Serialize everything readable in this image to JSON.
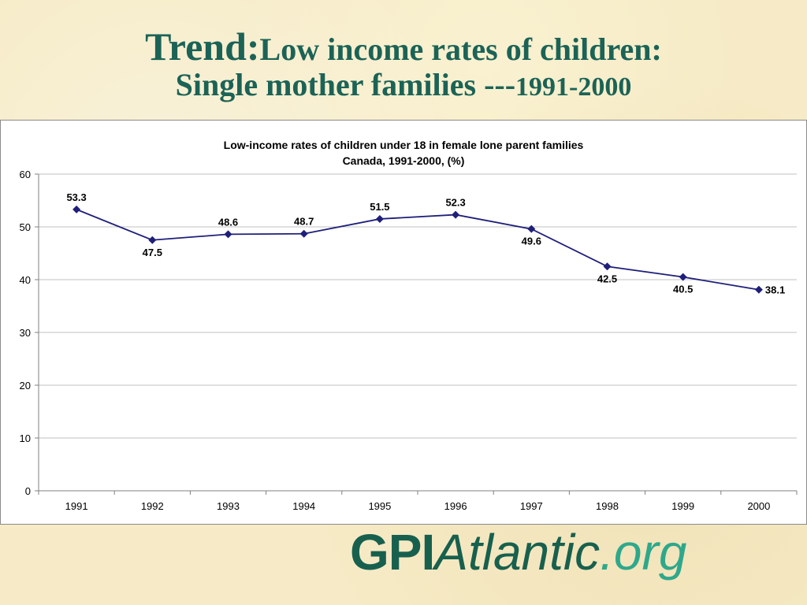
{
  "slide": {
    "title_prefix": "Trend:",
    "title_rest": "Low income rates of children:",
    "title_line2": "Single mother families ---",
    "title_years": "1991-2000"
  },
  "logo": {
    "part1": "GPI",
    "part2": "Atlantic",
    "part3": ".org"
  },
  "colors": {
    "title": "#1b6356",
    "line": "#1f1f7a",
    "logo_dark": "#18604e",
    "logo_light": "#2ea88b"
  },
  "chart_data": {
    "type": "line",
    "title": "Low-income rates of children under 18 in female lone parent families",
    "subtitle": "Canada, 1991-2000, (%)",
    "categories": [
      "1991",
      "1992",
      "1993",
      "1994",
      "1995",
      "1996",
      "1997",
      "1998",
      "1999",
      "2000"
    ],
    "series": [
      {
        "values": [
          53.3,
          47.5,
          48.6,
          48.7,
          51.5,
          52.3,
          49.6,
          42.5,
          40.5,
          38.1
        ]
      }
    ],
    "data_labels": [
      "53.3",
      "47.5",
      "48.6",
      "48.7",
      "51.5",
      "52.3",
      "49.6",
      "42.5",
      "40.5",
      "38.1"
    ],
    "yticks": [
      "0",
      "10",
      "20",
      "30",
      "40",
      "50",
      "60"
    ],
    "ylim": [
      0,
      60
    ],
    "grid": true,
    "marker": "diamond"
  }
}
